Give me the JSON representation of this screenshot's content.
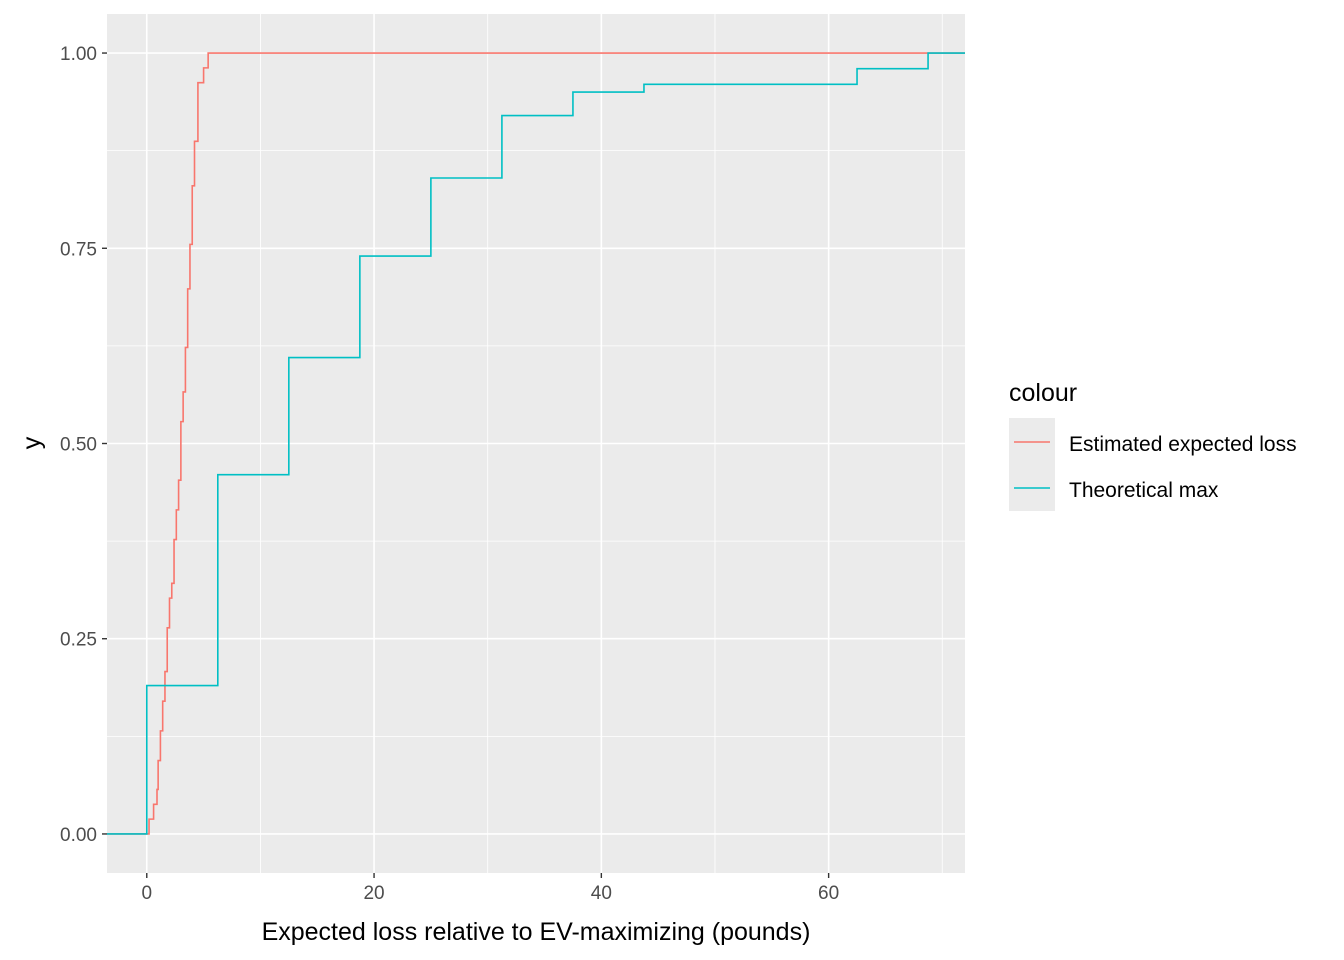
{
  "chart_data": {
    "type": "line",
    "subtype": "step-ecdf",
    "title": "",
    "xlabel": "Expected loss relative to EV-maximizing (pounds)",
    "ylabel": "y",
    "xlim": [
      -3.5,
      72
    ],
    "ylim": [
      -0.05,
      1.05
    ],
    "x_ticks": [
      0,
      20,
      40,
      60
    ],
    "x_tick_labels": [
      "0",
      "20",
      "40",
      "60"
    ],
    "y_ticks": [
      0,
      0.25,
      0.5,
      0.75,
      1
    ],
    "y_tick_labels": [
      "0.00",
      "0.25",
      "0.50",
      "0.75",
      "1.00"
    ],
    "grid": true,
    "panel_background": "#ebebeb",
    "legend": {
      "title": "colour",
      "position": "right"
    },
    "series": [
      {
        "name": "Estimated expected loss",
        "color": "#F8766D",
        "steps": [
          [
            0.2,
            0.019
          ],
          [
            0.6,
            0.038
          ],
          [
            0.9,
            0.057
          ],
          [
            1.0,
            0.094
          ],
          [
            1.2,
            0.132
          ],
          [
            1.4,
            0.17
          ],
          [
            1.6,
            0.208
          ],
          [
            1.8,
            0.264
          ],
          [
            2.0,
            0.302
          ],
          [
            2.2,
            0.321
          ],
          [
            2.4,
            0.377
          ],
          [
            2.6,
            0.415
          ],
          [
            2.8,
            0.453
          ],
          [
            3.0,
            0.528
          ],
          [
            3.2,
            0.566
          ],
          [
            3.4,
            0.623
          ],
          [
            3.6,
            0.698
          ],
          [
            3.8,
            0.755
          ],
          [
            4.0,
            0.83
          ],
          [
            4.2,
            0.887
          ],
          [
            4.5,
            0.962
          ],
          [
            5.0,
            0.981
          ],
          [
            5.4,
            1.0
          ]
        ],
        "x_end": 72
      },
      {
        "name": "Theoretical max",
        "color": "#00BFC4",
        "steps": [
          [
            0,
            0.19
          ],
          [
            6.25,
            0.46
          ],
          [
            12.5,
            0.61
          ],
          [
            18.75,
            0.74
          ],
          [
            25,
            0.84
          ],
          [
            31.25,
            0.92
          ],
          [
            37.5,
            0.95
          ],
          [
            43.75,
            0.96
          ],
          [
            62.5,
            0.98
          ],
          [
            68.75,
            1.0
          ]
        ],
        "x_end": 72
      }
    ]
  }
}
